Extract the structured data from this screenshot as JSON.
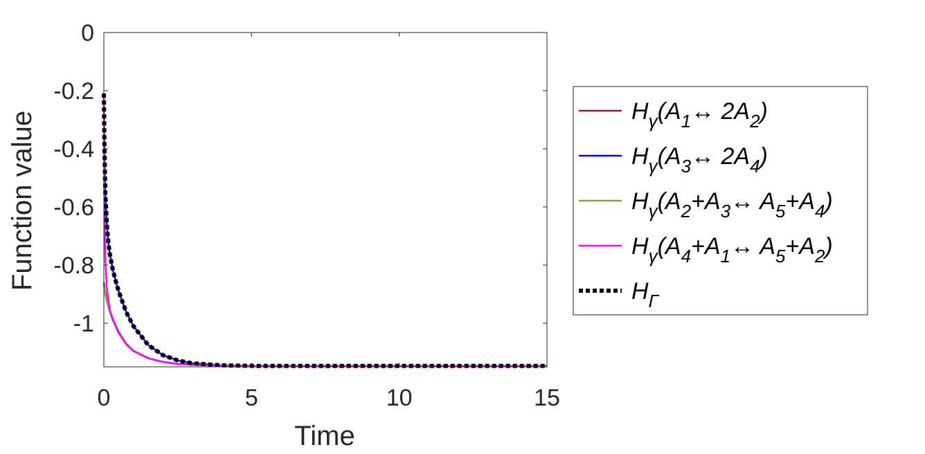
{
  "chart_data": {
    "type": "line",
    "xlabel": "Time",
    "ylabel": "Function value",
    "xlim": [
      0,
      15
    ],
    "ylim": [
      -1.15,
      0
    ],
    "xticks": [
      0,
      5,
      10,
      15
    ],
    "xtick_labels": [
      "0",
      "5",
      "10",
      "15"
    ],
    "yticks": [
      0,
      -0.2,
      -0.4,
      -0.6,
      -0.8,
      -1
    ],
    "ytick_labels": [
      "0",
      "-0.2",
      "-0.4",
      "-0.6",
      "-0.8",
      "-1"
    ],
    "legend_position": "right",
    "grid": false,
    "series": [
      {
        "name": "Hγ(A1↔ 2A2)",
        "color": "#a2142f",
        "style": "solid",
        "x": [
          0,
          0.02,
          0.05,
          0.1,
          0.2,
          0.3,
          0.5,
          0.75,
          1.0,
          1.5,
          2.0,
          2.5,
          3.0,
          4.0,
          5.0,
          7.0,
          10.0,
          15.0
        ],
        "y": [
          -0.86,
          -0.875,
          -0.895,
          -0.92,
          -0.955,
          -0.985,
          -1.03,
          -1.07,
          -1.095,
          -1.12,
          -1.133,
          -1.14,
          -1.143,
          -1.146,
          -1.147,
          -1.147,
          -1.147,
          -1.147
        ]
      },
      {
        "name": "Hγ(A3↔ 2A4)",
        "color": "#0000ff",
        "style": "solid",
        "x": [
          0,
          0.02,
          0.05,
          0.1,
          0.15,
          0.2,
          0.3,
          0.4,
          0.5,
          0.75,
          1.0,
          1.5,
          2.0,
          2.5,
          3.0,
          4.0,
          5.0,
          7.0,
          10.0,
          15.0
        ],
        "y": [
          -0.21,
          -0.4,
          -0.55,
          -0.66,
          -0.72,
          -0.76,
          -0.815,
          -0.855,
          -0.89,
          -0.96,
          -1.01,
          -1.075,
          -1.11,
          -1.128,
          -1.138,
          -1.145,
          -1.147,
          -1.147,
          -1.147,
          -1.147
        ]
      },
      {
        "name": "Hγ(A2+A3↔ A5+A4)",
        "color": "#77ac30",
        "style": "solid",
        "x": [
          0,
          0.02,
          0.05,
          0.1,
          0.2,
          0.3,
          0.5,
          0.75,
          1.0,
          1.5,
          2.0,
          2.5,
          3.0,
          4.0,
          5.0,
          7.0,
          10.0,
          15.0
        ],
        "y": [
          -0.87,
          -0.88,
          -0.9,
          -0.925,
          -0.96,
          -0.99,
          -1.035,
          -1.073,
          -1.097,
          -1.121,
          -1.134,
          -1.14,
          -1.143,
          -1.146,
          -1.147,
          -1.147,
          -1.147,
          -1.147
        ]
      },
      {
        "name": "Hγ(A4+A1↔ A5+A2)",
        "color": "#ff00ff",
        "style": "solid",
        "x": [
          0,
          0.02,
          0.05,
          0.1,
          0.2,
          0.3,
          0.5,
          0.75,
          1.0,
          1.5,
          2.0,
          2.5,
          3.0,
          4.0,
          5.0,
          7.0,
          10.0,
          15.0
        ],
        "y": [
          -0.21,
          -0.6,
          -0.78,
          -0.88,
          -0.955,
          -0.985,
          -1.03,
          -1.07,
          -1.095,
          -1.12,
          -1.133,
          -1.14,
          -1.143,
          -1.146,
          -1.147,
          -1.147,
          -1.147,
          -1.147
        ]
      },
      {
        "name": "HΓ",
        "color": "#000000",
        "style": "dotted",
        "x": [
          0,
          0.02,
          0.05,
          0.1,
          0.15,
          0.2,
          0.3,
          0.4,
          0.5,
          0.75,
          1.0,
          1.5,
          2.0,
          2.5,
          3.0,
          4.0,
          5.0,
          7.0,
          10.0,
          15.0
        ],
        "y": [
          -0.21,
          -0.4,
          -0.55,
          -0.66,
          -0.72,
          -0.76,
          -0.815,
          -0.855,
          -0.89,
          -0.96,
          -1.01,
          -1.075,
          -1.11,
          -1.128,
          -1.138,
          -1.145,
          -1.147,
          -1.147,
          -1.147,
          -1.147
        ]
      }
    ],
    "legend": [
      {
        "base": "H",
        "sub": "γ",
        "parts": [
          [
            "(A",
            ""
          ],
          [
            "1",
            "sub"
          ],
          [
            "↔ 2A",
            ""
          ],
          [
            "2",
            "sub"
          ],
          [
            ")",
            ""
          ]
        ]
      },
      {
        "base": "H",
        "sub": "γ",
        "parts": [
          [
            "(A",
            ""
          ],
          [
            "3",
            "sub"
          ],
          [
            "↔ 2A",
            ""
          ],
          [
            "4",
            "sub"
          ],
          [
            ")",
            ""
          ]
        ]
      },
      {
        "base": "H",
        "sub": "γ",
        "parts": [
          [
            "(A",
            ""
          ],
          [
            "2",
            "sub"
          ],
          [
            "+A",
            ""
          ],
          [
            "3",
            "sub"
          ],
          [
            "↔ A",
            ""
          ],
          [
            "5",
            "sub"
          ],
          [
            "+A",
            ""
          ],
          [
            "4",
            "sub"
          ],
          [
            ")",
            ""
          ]
        ]
      },
      {
        "base": "H",
        "sub": "γ",
        "parts": [
          [
            "(A",
            ""
          ],
          [
            "4",
            "sub"
          ],
          [
            "+A",
            ""
          ],
          [
            "1",
            "sub"
          ],
          [
            "↔ A",
            ""
          ],
          [
            "5",
            "sub"
          ],
          [
            "+A",
            ""
          ],
          [
            "2",
            "sub"
          ],
          [
            ")",
            ""
          ]
        ]
      },
      {
        "base": "H",
        "sub": "Γ",
        "parts": []
      }
    ]
  }
}
